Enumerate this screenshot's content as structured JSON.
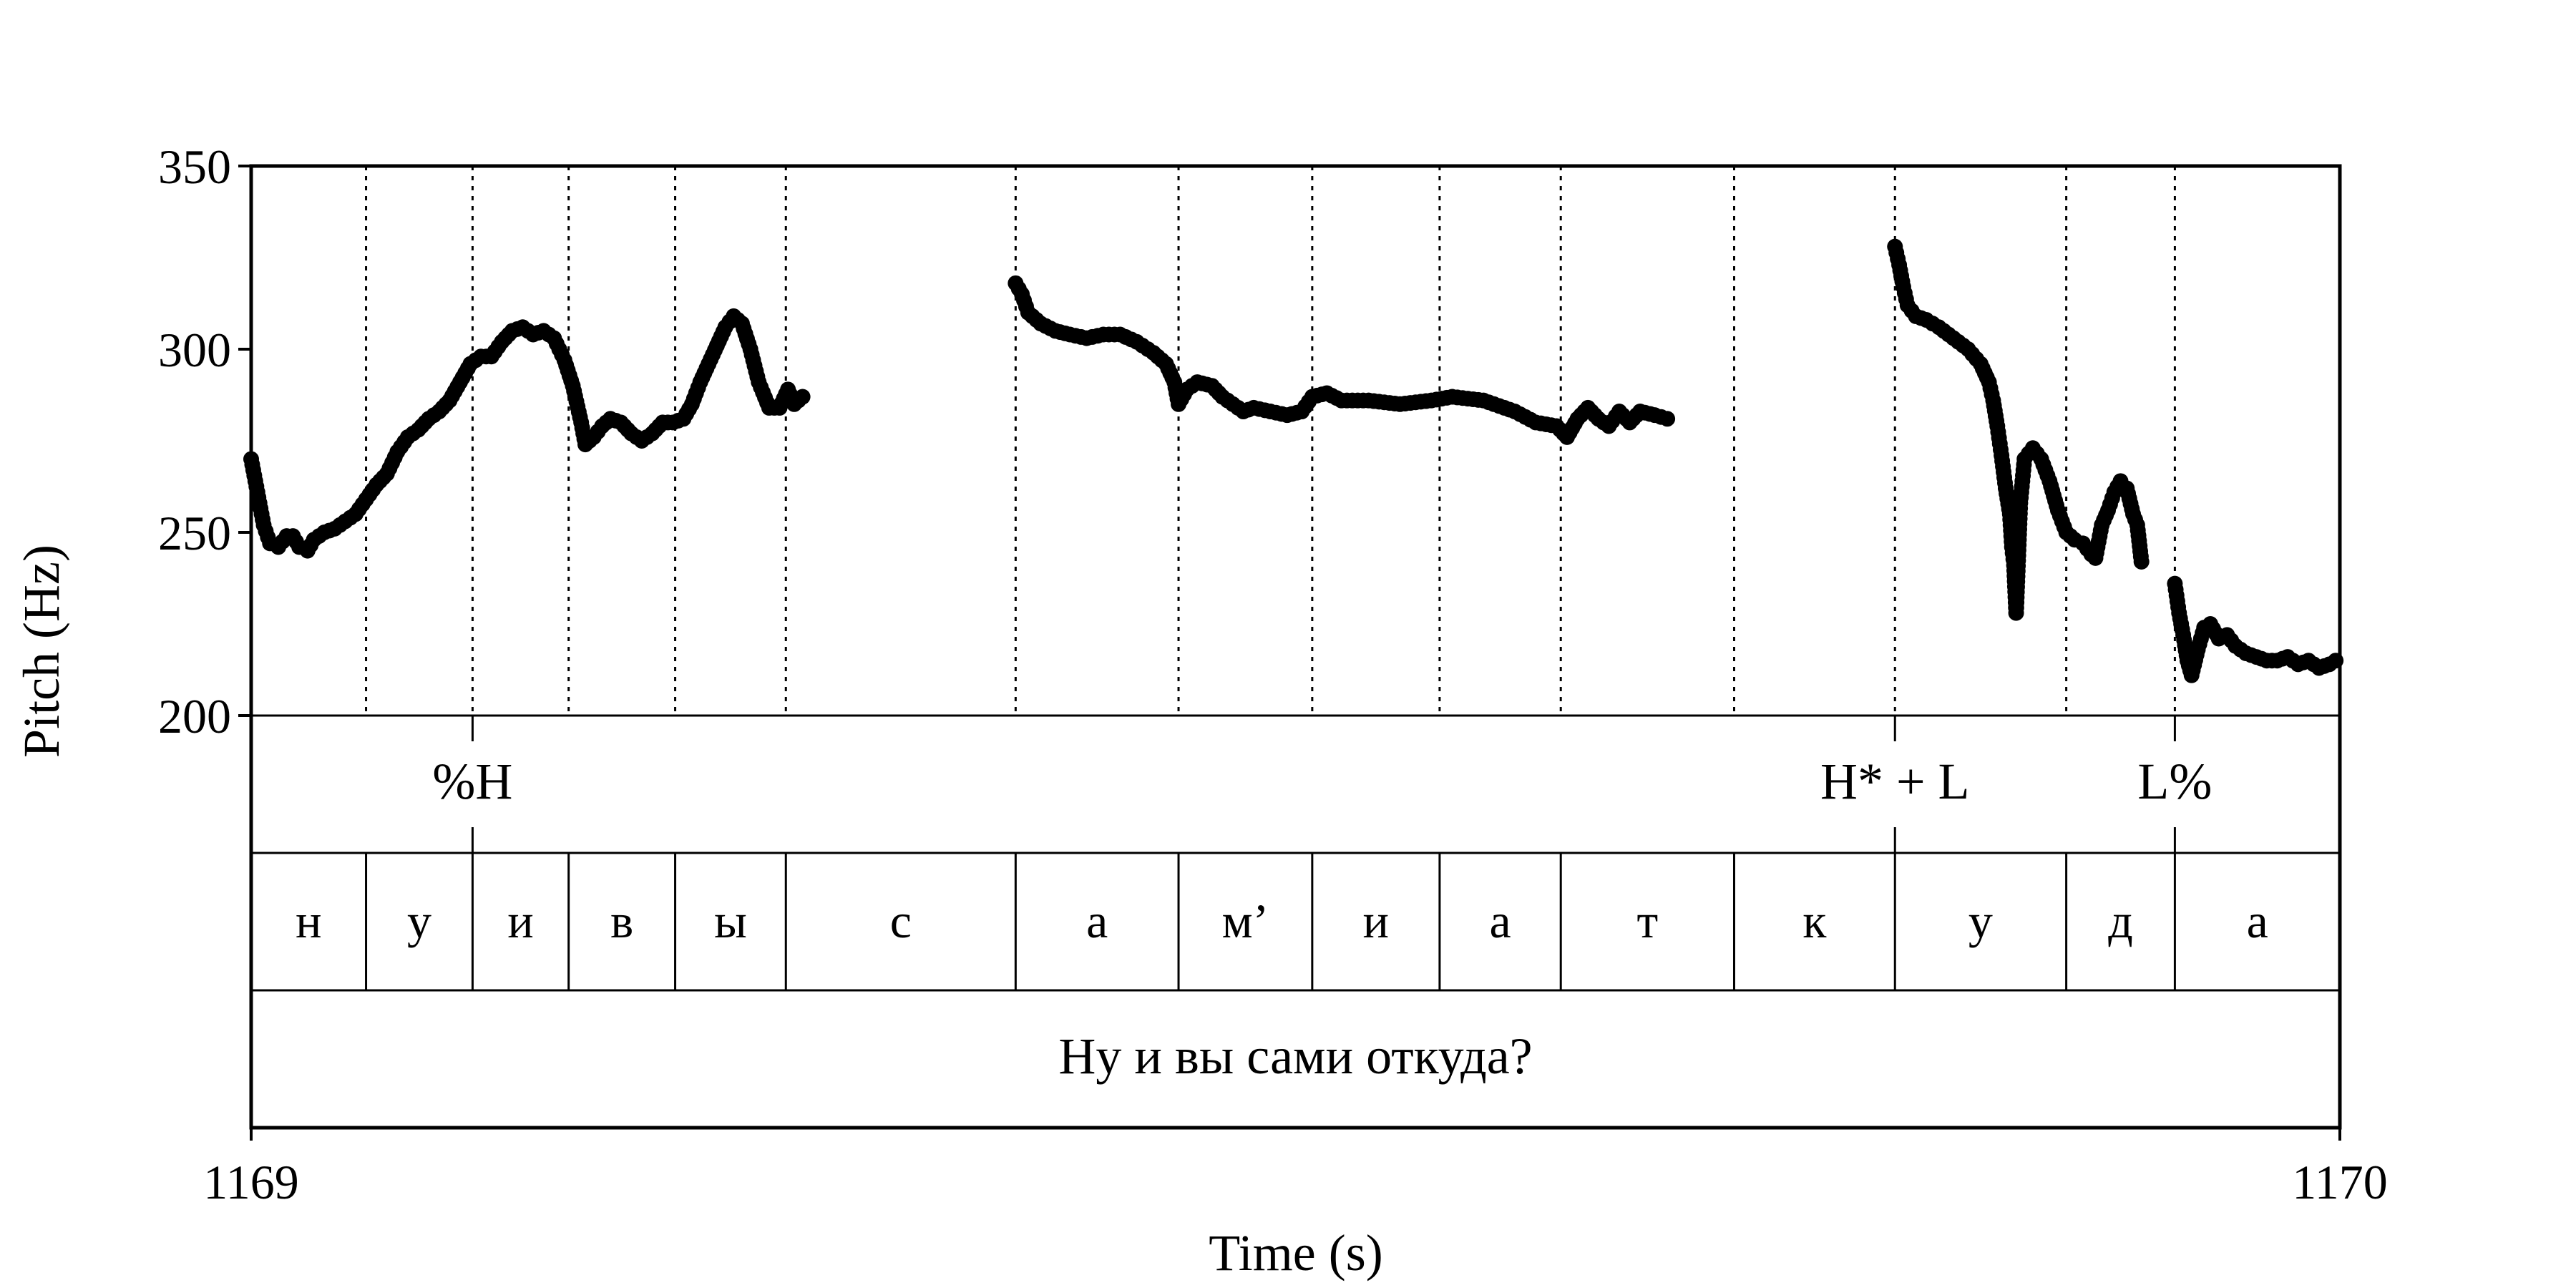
{
  "chart_data": {
    "type": "scatter",
    "title": "",
    "xlabel": "Time (s)",
    "ylabel": "Pitch (Hz)",
    "xlim": [
      1169,
      1170
    ],
    "ylim": [
      200,
      350
    ],
    "x_tick_labels": [
      "1169",
      "1170"
    ],
    "y_tick_labels": [
      "200",
      "250",
      "300",
      "350"
    ],
    "grid": false,
    "boundaries": [
      1169.055,
      1169.106,
      1169.152,
      1169.203,
      1169.256,
      1169.366,
      1169.444,
      1169.508,
      1169.569,
      1169.627,
      1169.71,
      1169.787,
      1169.869,
      1169.921
    ],
    "tones": [
      {
        "label": "%H",
        "x": 1169.106
      },
      {
        "label": "H* + L",
        "x": 1169.787
      },
      {
        "label": "L%",
        "x": 1169.921
      }
    ],
    "segments": [
      {
        "label": "н",
        "start": 1169.0,
        "end": 1169.055
      },
      {
        "label": "у",
        "start": 1169.055,
        "end": 1169.106
      },
      {
        "label": "и",
        "start": 1169.106,
        "end": 1169.152
      },
      {
        "label": "в",
        "start": 1169.152,
        "end": 1169.203
      },
      {
        "label": "ы",
        "start": 1169.203,
        "end": 1169.256
      },
      {
        "label": "с",
        "start": 1169.256,
        "end": 1169.366
      },
      {
        "label": "а",
        "start": 1169.366,
        "end": 1169.444
      },
      {
        "label": "м’",
        "start": 1169.444,
        "end": 1169.508
      },
      {
        "label": "и",
        "start": 1169.508,
        "end": 1169.569
      },
      {
        "label": "а",
        "start": 1169.569,
        "end": 1169.627
      },
      {
        "label": "т",
        "start": 1169.627,
        "end": 1169.71
      },
      {
        "label": "к",
        "start": 1169.71,
        "end": 1169.787
      },
      {
        "label": "у",
        "start": 1169.787,
        "end": 1169.869
      },
      {
        "label": "д",
        "start": 1169.869,
        "end": 1169.921
      },
      {
        "label": "а",
        "start": 1169.921,
        "end": 1170.0
      }
    ],
    "sentence": "Ну и вы сами откуда?",
    "series": [
      {
        "color": "#000000",
        "segments": [
          [
            [
              1169.0,
              270
            ],
            [
              1169.002,
              264
            ],
            [
              1169.004,
              258
            ],
            [
              1169.006,
              252
            ],
            [
              1169.009,
              247
            ],
            [
              1169.013,
              246
            ],
            [
              1169.017,
              249
            ],
            [
              1169.02,
              249
            ],
            [
              1169.023,
              246
            ],
            [
              1169.027,
              245
            ],
            [
              1169.03,
              248
            ],
            [
              1169.035,
              250
            ],
            [
              1169.04,
              251
            ],
            [
              1169.045,
              253
            ],
            [
              1169.05,
              255
            ],
            [
              1169.055,
              259
            ],
            [
              1169.06,
              263
            ],
            [
              1169.065,
              266
            ],
            [
              1169.07,
              272
            ],
            [
              1169.075,
              276
            ],
            [
              1169.08,
              278
            ],
            [
              1169.085,
              281
            ],
            [
              1169.09,
              283
            ],
            [
              1169.095,
              286
            ],
            [
              1169.1,
              291
            ],
            [
              1169.105,
              296
            ],
            [
              1169.11,
              298
            ],
            [
              1169.115,
              298
            ],
            [
              1169.12,
              302
            ],
            [
              1169.125,
              305
            ],
            [
              1169.13,
              306
            ],
            [
              1169.135,
              304
            ],
            [
              1169.14,
              305
            ],
            [
              1169.145,
              303
            ],
            [
              1169.15,
              297
            ],
            [
              1169.154,
              290
            ],
            [
              1169.158,
              280
            ],
            [
              1169.16,
              274
            ],
            [
              1169.164,
              276
            ],
            [
              1169.168,
              279
            ],
            [
              1169.172,
              281
            ],
            [
              1169.177,
              280
            ],
            [
              1169.182,
              277
            ],
            [
              1169.187,
              275
            ],
            [
              1169.192,
              277
            ],
            [
              1169.197,
              280
            ],
            [
              1169.202,
              280
            ],
            [
              1169.207,
              281
            ],
            [
              1169.211,
              285
            ],
            [
              1169.215,
              291
            ],
            [
              1169.219,
              296
            ],
            [
              1169.223,
              301
            ],
            [
              1169.227,
              306
            ],
            [
              1169.231,
              309
            ],
            [
              1169.235,
              307
            ],
            [
              1169.239,
              300
            ],
            [
              1169.243,
              291
            ],
            [
              1169.248,
              284
            ],
            [
              1169.253,
              284
            ],
            [
              1169.257,
              289
            ],
            [
              1169.26,
              285
            ],
            [
              1169.264,
              287
            ]
          ],
          [
            [
              1169.366,
              318
            ],
            [
              1169.369,
              315
            ],
            [
              1169.372,
              310
            ],
            [
              1169.378,
              307
            ],
            [
              1169.385,
              305
            ],
            [
              1169.392,
              304
            ],
            [
              1169.4,
              303
            ],
            [
              1169.408,
              304
            ],
            [
              1169.416,
              304
            ],
            [
              1169.424,
              302
            ],
            [
              1169.432,
              299
            ],
            [
              1169.438,
              296
            ],
            [
              1169.442,
              291
            ],
            [
              1169.444,
              285
            ],
            [
              1169.448,
              289
            ],
            [
              1169.453,
              291
            ],
            [
              1169.46,
              290
            ],
            [
              1169.465,
              287
            ],
            [
              1169.47,
              285
            ],
            [
              1169.475,
              283
            ],
            [
              1169.48,
              284
            ],
            [
              1169.488,
              283
            ],
            [
              1169.496,
              282
            ],
            [
              1169.503,
              283
            ],
            [
              1169.508,
              287
            ],
            [
              1169.515,
              288
            ],
            [
              1169.522,
              286
            ],
            [
              1169.535,
              286
            ],
            [
              1169.55,
              285
            ],
            [
              1169.565,
              286
            ],
            [
              1169.575,
              287
            ],
            [
              1169.59,
              286
            ],
            [
              1169.605,
              283
            ],
            [
              1169.615,
              280
            ],
            [
              1169.625,
              279
            ],
            [
              1169.63,
              276
            ],
            [
              1169.635,
              281
            ],
            [
              1169.64,
              284
            ],
            [
              1169.645,
              281
            ],
            [
              1169.65,
              279
            ],
            [
              1169.655,
              283
            ],
            [
              1169.66,
              280
            ],
            [
              1169.665,
              283
            ],
            [
              1169.672,
              282
            ],
            [
              1169.678,
              281
            ]
          ],
          [
            [
              1169.787,
              328
            ],
            [
              1169.789,
              323
            ],
            [
              1169.791,
              317
            ],
            [
              1169.793,
              312
            ],
            [
              1169.797,
              309
            ],
            [
              1169.802,
              308
            ],
            [
              1169.808,
              306
            ],
            [
              1169.815,
              303
            ],
            [
              1169.822,
              300
            ],
            [
              1169.828,
              296
            ],
            [
              1169.832,
              291
            ],
            [
              1169.834,
              286
            ],
            [
              1169.836,
              279
            ],
            [
              1169.838,
              271
            ],
            [
              1169.84,
              262
            ],
            [
              1169.842,
              255
            ],
            [
              1169.843,
              246
            ],
            [
              1169.844,
              241
            ],
            [
              1169.845,
              228
            ],
            [
              1169.847,
              258
            ],
            [
              1169.849,
              270
            ],
            [
              1169.853,
              273
            ],
            [
              1169.857,
              270
            ],
            [
              1169.861,
              264
            ],
            [
              1169.865,
              256
            ],
            [
              1169.869,
              250
            ],
            [
              1169.873,
              248
            ],
            [
              1169.877,
              247
            ],
            [
              1169.881,
              244
            ],
            [
              1169.883,
              243
            ],
            [
              1169.886,
              252
            ],
            [
              1169.889,
              256
            ],
            [
              1169.892,
              261
            ],
            [
              1169.895,
              264
            ],
            [
              1169.898,
              262
            ],
            [
              1169.901,
              255
            ],
            [
              1169.903,
              252
            ],
            [
              1169.905,
              242
            ]
          ],
          [
            [
              1169.921,
              236
            ],
            [
              1169.923,
              228
            ],
            [
              1169.925,
              222
            ],
            [
              1169.927,
              215
            ],
            [
              1169.929,
              211
            ],
            [
              1169.932,
              218
            ],
            [
              1169.935,
              224
            ],
            [
              1169.938,
              225
            ],
            [
              1169.942,
              221
            ],
            [
              1169.946,
              222
            ],
            [
              1169.95,
              219
            ],
            [
              1169.955,
              217
            ],
            [
              1169.96,
              216
            ],
            [
              1169.965,
              215
            ],
            [
              1169.97,
              215
            ],
            [
              1169.975,
              216
            ],
            [
              1169.98,
              214
            ],
            [
              1169.985,
              215
            ],
            [
              1169.99,
              213
            ],
            [
              1169.995,
              214
            ],
            [
              1169.998,
              215
            ]
          ]
        ]
      }
    ]
  }
}
